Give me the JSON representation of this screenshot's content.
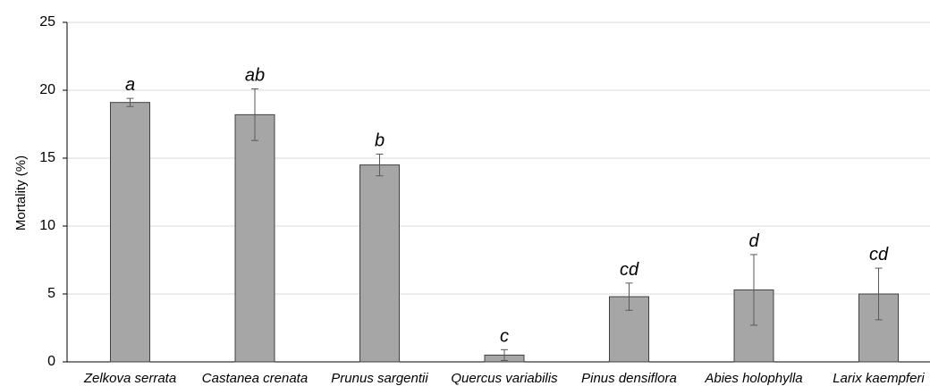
{
  "chart_data": {
    "type": "bar",
    "title": "",
    "xlabel": "",
    "ylabel": "Mortality (%)",
    "ylim": [
      0,
      25
    ],
    "yticks": [
      0,
      5,
      10,
      15,
      20,
      25
    ],
    "grid": true,
    "categories": [
      "Zelkova serrata",
      "Castanea crenata",
      "Prunus sargentii",
      "Quercus variabilis",
      "Pinus densiflora",
      "Abies holophylla",
      "Larix kaempferi"
    ],
    "values": [
      19.1,
      18.2,
      14.5,
      0.5,
      4.8,
      5.3,
      5.0
    ],
    "errors": [
      0.3,
      1.9,
      0.8,
      0.4,
      1.0,
      2.6,
      1.9
    ],
    "significance_labels": [
      "a",
      "ab",
      "b",
      "c",
      "cd",
      "d",
      "cd"
    ],
    "colors": {
      "bar": "#a6a6a6",
      "bar_edge": "#404040",
      "grid": "#d9d9d9",
      "axis": "#000000",
      "error": "#595959"
    }
  }
}
